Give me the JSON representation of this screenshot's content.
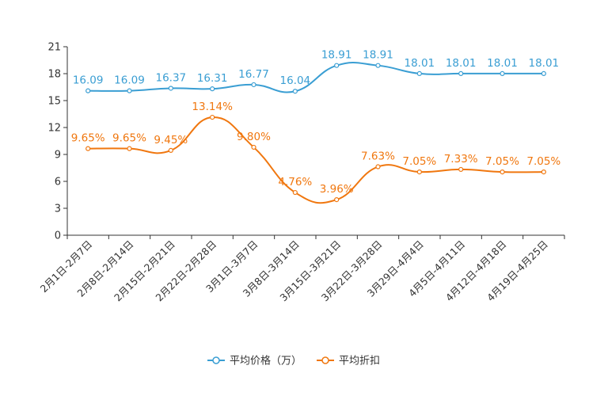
{
  "chart_data": {
    "type": "line",
    "categories": [
      "2月1日-2月7日",
      "2月8日-2月14日",
      "2月15日-2月21日",
      "2月22日-2月28日",
      "3月1日-3月7日",
      "3月8日-3月14日",
      "3月15日-3月21日",
      "3月22日-3月28日",
      "3月29日-4月4日",
      "4月5日-4月11日",
      "4月12日-4月18日",
      "4月19日-4月25日"
    ],
    "series": [
      {
        "name": "平均价格（万）",
        "color": "#3a9ed3",
        "values": [
          16.09,
          16.09,
          16.37,
          16.31,
          16.77,
          16.04,
          18.91,
          18.91,
          18.01,
          18.01,
          18.01,
          18.01
        ],
        "labels": [
          "16.09",
          "16.09",
          "16.37",
          "16.31",
          "16.77",
          "16.04",
          "18.91",
          "18.91",
          "18.01",
          "18.01",
          "18.01",
          "18.01"
        ]
      },
      {
        "name": "平均折扣",
        "color": "#f0770f",
        "values": [
          9.65,
          9.65,
          9.45,
          13.14,
          9.8,
          4.76,
          3.96,
          7.63,
          7.05,
          7.33,
          7.05,
          7.05
        ],
        "labels": [
          "9.65%",
          "9.65%",
          "9.45%",
          "13.14%",
          "9.80%",
          "4.76%",
          "3.96%",
          "7.63%",
          "7.05%",
          "7.33%",
          "7.05%",
          "7.05%"
        ]
      }
    ],
    "ylim": [
      0,
      21
    ],
    "yticks": [
      0,
      3,
      6,
      9,
      12,
      15,
      18,
      21
    ],
    "title": "",
    "xlabel": "",
    "ylabel": "",
    "grid": false,
    "legend_position": "bottom-center"
  }
}
